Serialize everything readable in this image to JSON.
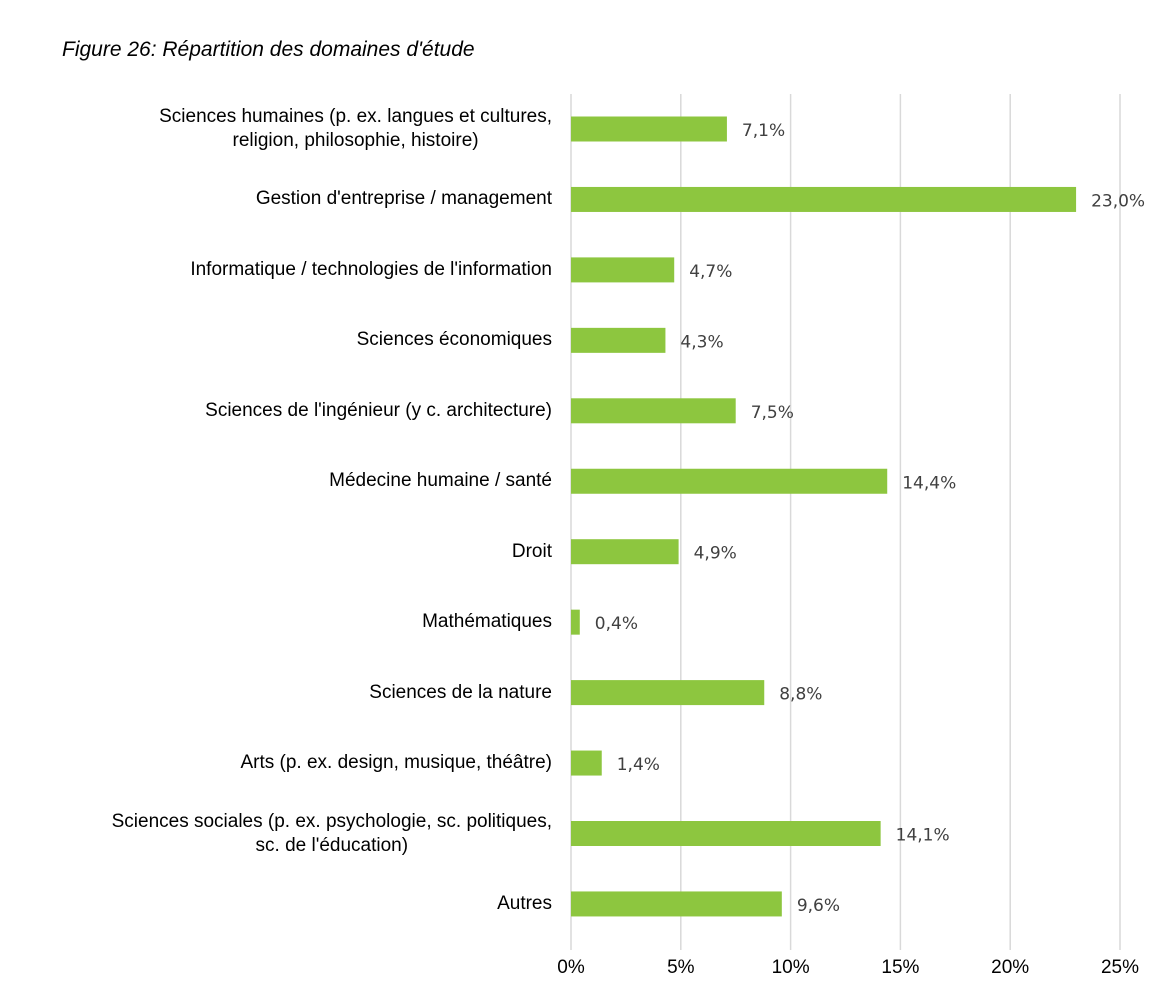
{
  "chart_data": {
    "type": "barh",
    "title": "Figure 26: Répartition des domaines d'étude",
    "categories": [
      "Sciences humaines (p. ex. langues et cultures,\nreligion, philosophie, histoire)",
      "Gestion d'entreprise / management",
      "Informatique / technologies de l'information",
      "Sciences économiques",
      "Sciences de l'ingénieur (y c. architecture)",
      "Médecine humaine / santé",
      "Droit",
      "Mathématiques",
      "Sciences de la nature",
      "Arts (p. ex. design, musique, théâtre)",
      "Sciences sociales (p. ex. psychologie, sc. politiques,\nsc. de l'éducation)",
      "Autres"
    ],
    "values": [
      7.1,
      23.0,
      4.7,
      4.3,
      7.5,
      14.4,
      4.9,
      0.4,
      8.8,
      1.4,
      14.1,
      9.6
    ],
    "value_labels": [
      "7,1%",
      "23,0%",
      "4,7%",
      "4,3%",
      "7,5%",
      "14,4%",
      "4,9%",
      "0,4%",
      "8,8%",
      "1,4%",
      "14,1%",
      "9,6%"
    ],
    "color": "#8dc63f",
    "xlim": [
      0,
      25
    ],
    "xticks": [
      {
        "value": 0,
        "label": "0%"
      },
      {
        "value": 5,
        "label": "5%"
      },
      {
        "value": 10,
        "label": "10%"
      },
      {
        "value": 15,
        "label": "15%"
      },
      {
        "value": 20,
        "label": "20%"
      },
      {
        "value": 25,
        "label": "25%"
      }
    ],
    "grid": true
  }
}
